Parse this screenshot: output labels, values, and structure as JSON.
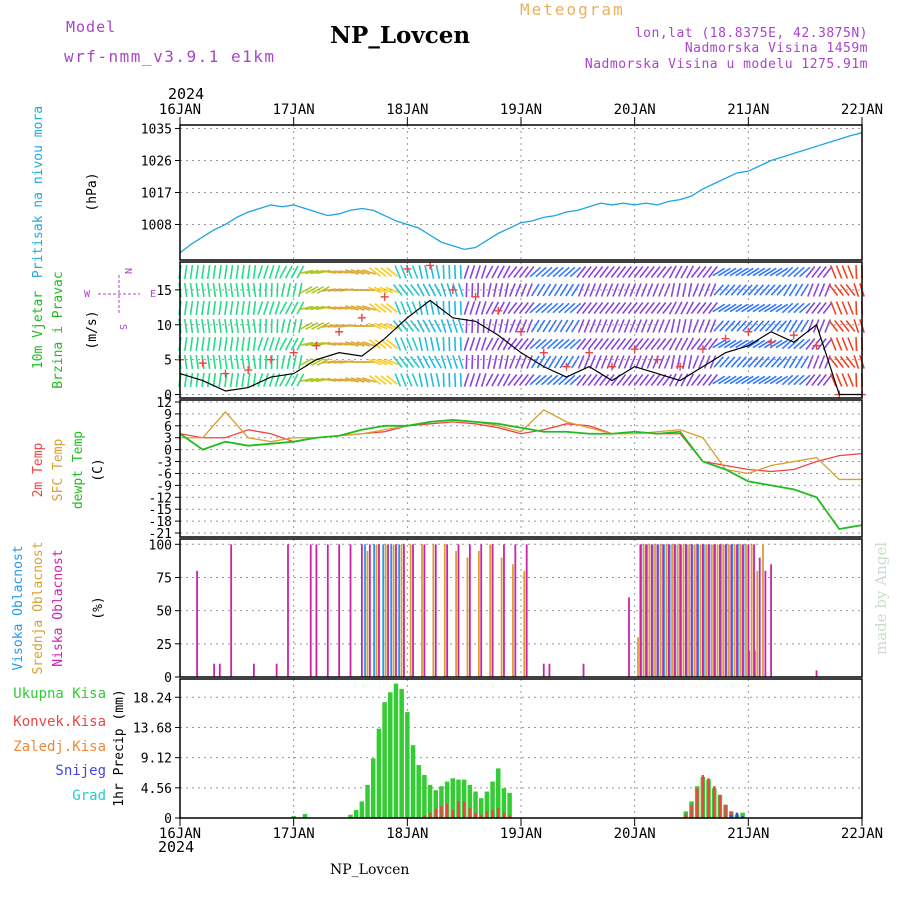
{
  "header": {
    "model_label": "Model",
    "model_name": "wrf-nmm_v3.9.1 e1km",
    "station": "NP_Lovcen",
    "meteogram_label": "Meteogram",
    "lonlat": "lon,lat (18.8375E, 42.3875N)",
    "altitude": "Nadmorska Visina 1459m",
    "model_altitude": "Nadmorska Visina u modelu 1275.91m",
    "year_top": "2024",
    "year_bottom": "2024",
    "footer_station": "NP_Lovcen",
    "watermark": "made by Angel"
  },
  "colors": {
    "pressure": "#1fa2e6",
    "temp2m": "#ee4444",
    "sfc": "#d9a030",
    "dew": "#22bb22",
    "cloud_high": "#2299ee",
    "cloud_mid": "#d9a030",
    "cloud_low": "#cc22aa",
    "rain_total": "#33cc33",
    "rain_conv": "#ee4444",
    "rain_frozen": "#ee8833",
    "snow": "#4444ee",
    "hail": "#22cccc",
    "wind_speed": "#000000",
    "gust": "#ee4444",
    "labels_purple": "#aa44cc",
    "labels_cyan": "#22aadd"
  },
  "chart_data": [
    {
      "type": "line",
      "panel": "pressure",
      "ylabel_title": "Pritisak na nivou mora",
      "ylabel_unit": "(hPa)",
      "ylim": [
        998,
        1036
      ],
      "y_ticks": [
        "1035",
        "1026",
        "1017",
        "1008"
      ],
      "x_ticks": [
        "16JAN",
        "17JAN",
        "18JAN",
        "19JAN",
        "20JAN",
        "21JAN",
        "22JAN"
      ],
      "x_days": [
        0,
        6
      ],
      "series": [
        {
          "x": [
            0,
            0.1,
            0.2,
            0.3,
            0.4,
            0.5,
            0.6,
            0.7,
            0.8,
            0.9,
            1.0,
            1.1,
            1.2,
            1.3,
            1.4,
            1.5,
            1.6,
            1.7,
            1.8,
            1.9,
            2.0,
            2.1,
            2.2,
            2.3,
            2.4,
            2.5,
            2.6,
            2.7,
            2.8,
            2.9,
            3.0,
            3.1,
            3.2,
            3.3,
            3.4,
            3.5,
            3.6,
            3.7,
            3.8,
            3.9,
            4.0,
            4.1,
            4.2,
            4.3,
            4.4,
            4.5,
            4.6,
            4.7,
            4.8,
            4.9,
            5.0,
            5.1,
            5.2,
            5.3,
            5.4,
            5.5,
            5.6,
            5.7,
            5.8,
            5.9,
            6.0
          ],
          "values": [
            1000,
            1002.5,
            1004.5,
            1006.5,
            1008,
            1010,
            1011.5,
            1012.5,
            1013.5,
            1013,
            1013.5,
            1012.5,
            1011.5,
            1010.5,
            1011,
            1012,
            1012.5,
            1012,
            1010.5,
            1009,
            1008,
            1007,
            1005,
            1003,
            1002,
            1001,
            1001.5,
            1003.5,
            1005.5,
            1007,
            1008.5,
            1009,
            1010,
            1010.5,
            1011.5,
            1012,
            1013,
            1014,
            1013.5,
            1014,
            1013.5,
            1014,
            1013.5,
            1014.5,
            1015,
            1016,
            1018,
            1019.5,
            1021,
            1022.5,
            1023,
            1024.5,
            1026,
            1027,
            1028,
            1029,
            1030,
            1031,
            1032,
            1033,
            1033.8
          ]
        }
      ]
    },
    {
      "type": "line",
      "panel": "wind",
      "ylabel_title": "10m Vjetar",
      "ylabel_title2": "Brzina i Pravac",
      "ylabel_unit": "(m/s)",
      "compass": [
        "N",
        "W",
        "E",
        "S"
      ],
      "ylim": [
        -0.5,
        19
      ],
      "y_ticks": [
        "15",
        "10",
        "5",
        "0"
      ],
      "series": [
        {
          "name": "wind speed",
          "x": [
            0,
            0.2,
            0.4,
            0.6,
            0.8,
            1.0,
            1.2,
            1.4,
            1.6,
            1.8,
            2.0,
            2.2,
            2.4,
            2.6,
            2.8,
            3.0,
            3.2,
            3.4,
            3.6,
            3.8,
            4.0,
            4.2,
            4.4,
            4.6,
            4.8,
            5.0,
            5.2,
            5.4,
            5.6,
            5.8,
            6.0
          ],
          "values": [
            3,
            2,
            0.5,
            1,
            2.5,
            3,
            5,
            6,
            5.5,
            8,
            11,
            13.5,
            11,
            10.5,
            8.5,
            6,
            4,
            2.5,
            4,
            2,
            4,
            3,
            2,
            4,
            6,
            7,
            9,
            7.5,
            10,
            0,
            0
          ]
        },
        {
          "name": "gust",
          "x": [
            0,
            0.2,
            0.4,
            0.6,
            0.8,
            1.0,
            1.2,
            1.4,
            1.6,
            1.8,
            2.0,
            2.2,
            2.4,
            2.6,
            2.8,
            3.0,
            3.2,
            3.4,
            3.6,
            3.8,
            4.0,
            4.2,
            4.4,
            4.6,
            4.8,
            5.0,
            5.2,
            5.4,
            5.6,
            5.8,
            6.0
          ],
          "values": [
            5,
            4.5,
            3,
            3.5,
            5,
            6,
            7,
            9,
            11,
            14,
            18,
            18.5,
            15,
            14,
            12,
            9,
            6,
            4,
            6,
            4,
            6.5,
            5,
            4,
            6.5,
            8,
            9,
            7.5,
            8.5,
            7,
            0,
            0
          ]
        }
      ],
      "wind_direction_deg": [
        270,
        270,
        270,
        270,
        260,
        250,
        200,
        180,
        170,
        150,
        120,
        110,
        100,
        80,
        70,
        60,
        50,
        50,
        60,
        60,
        60,
        60,
        70,
        60,
        40,
        40,
        40,
        50,
        60,
        300,
        280
      ]
    },
    {
      "type": "line",
      "panel": "temperature",
      "ylabel_lines": [
        "2m Temp",
        "SFC Temp",
        "dewpt Temp"
      ],
      "ylabel_unit": "(C)",
      "ylim": [
        -22,
        12.5
      ],
      "y_ticks": [
        "12",
        "9",
        "6",
        "3",
        "0",
        "-3",
        "-6",
        "-9",
        "-12",
        "-15",
        "-18",
        "-21"
      ],
      "series": [
        {
          "name": "2m Temp",
          "x": [
            0,
            0.2,
            0.4,
            0.6,
            0.8,
            1.0,
            1.2,
            1.4,
            1.6,
            1.8,
            2.0,
            2.2,
            2.4,
            2.6,
            2.8,
            3.0,
            3.2,
            3.4,
            3.6,
            3.8,
            4.0,
            4.2,
            4.4,
            4.6,
            4.8,
            5.0,
            5.2,
            5.4,
            5.6,
            5.8,
            6.0
          ],
          "values": [
            4,
            3,
            3,
            5,
            4,
            2,
            3,
            3.5,
            4,
            4.5,
            6,
            6.5,
            7,
            6.5,
            5.5,
            4,
            5,
            6.5,
            6,
            4,
            4.5,
            4,
            4,
            -3,
            -4,
            -5,
            -5.5,
            -5,
            -3,
            -1.5,
            -1
          ]
        },
        {
          "name": "SFC Temp",
          "x": [
            0,
            0.2,
            0.4,
            0.6,
            0.8,
            1.0,
            1.2,
            1.4,
            1.6,
            1.8,
            2.0,
            2.2,
            2.4,
            2.6,
            2.8,
            3.0,
            3.2,
            3.4,
            3.6,
            3.8,
            4.0,
            4.2,
            4.4,
            4.6,
            4.8,
            5.0,
            5.2,
            5.4,
            5.6,
            5.8,
            6.0
          ],
          "values": [
            3,
            3,
            9.5,
            3,
            2,
            3,
            3,
            3.5,
            4,
            5,
            6,
            7,
            7.5,
            7,
            6,
            4.5,
            10,
            7,
            5.5,
            4,
            4,
            4.5,
            5,
            3,
            -5,
            -6,
            -4,
            -3,
            -2,
            -7.5,
            -7.5
          ]
        },
        {
          "name": "dewpt Temp",
          "x": [
            0,
            0.2,
            0.4,
            0.6,
            0.8,
            1.0,
            1.2,
            1.4,
            1.6,
            1.8,
            2.0,
            2.2,
            2.4,
            2.6,
            2.8,
            3.0,
            3.2,
            3.4,
            3.6,
            3.8,
            4.0,
            4.2,
            4.4,
            4.6,
            4.8,
            5.0,
            5.2,
            5.4,
            5.6,
            5.8,
            6.0
          ],
          "values": [
            4,
            0,
            2,
            1,
            1.5,
            2,
            3,
            3.5,
            5,
            6,
            6,
            7,
            7.5,
            7,
            6.5,
            5.5,
            4.5,
            4.5,
            4,
            4,
            4.5,
            4,
            4.5,
            -3,
            -5,
            -8,
            -9,
            -10,
            -12,
            -20,
            -19
          ]
        }
      ]
    },
    {
      "type": "bar",
      "panel": "clouds",
      "ylabel_lines": [
        "Visoka Oblacnost",
        "Srednja Oblacnost",
        "Niska Oblacnost"
      ],
      "ylabel_unit": "(%)",
      "ylim": [
        0,
        104
      ],
      "y_ticks": [
        "100",
        "75",
        "50",
        "25",
        "0"
      ],
      "x": [
        0.1,
        0.25,
        0.3,
        0.4,
        0.6,
        0.8,
        0.9,
        1.0,
        1.1,
        1.15,
        1.25,
        1.35,
        1.45,
        1.55,
        1.62,
        1.7,
        1.78,
        1.85,
        1.92,
        2.0,
        2.1,
        2.2,
        2.3,
        2.4,
        2.5,
        2.6,
        2.7,
        2.8,
        2.9,
        3.0,
        3.15,
        3.2,
        3.5,
        3.6,
        3.9,
        4.0,
        4.05,
        4.1,
        4.15,
        4.2,
        4.25,
        4.3,
        4.35,
        4.4,
        4.45,
        4.5,
        4.55,
        4.6,
        4.65,
        4.7,
        4.75,
        4.8,
        4.85,
        4.9,
        4.95,
        5.0,
        5.05,
        5.1,
        5.15,
        5.2,
        5.55
      ],
      "series": [
        {
          "name": "Visoka Oblacnost",
          "values": [
            0,
            0,
            0,
            0,
            0,
            0,
            0,
            0,
            0,
            0,
            0,
            0,
            0,
            0,
            100,
            100,
            100,
            100,
            100,
            0,
            0,
            0,
            0,
            0,
            0,
            0,
            0,
            0,
            0,
            0,
            0,
            0,
            0,
            0,
            0,
            0,
            100,
            100,
            100,
            100,
            100,
            100,
            100,
            100,
            100,
            100,
            100,
            100,
            100,
            100,
            100,
            100,
            100,
            100,
            100,
            20,
            20,
            0,
            0,
            0,
            0
          ]
        },
        {
          "name": "Srednja Oblacnost",
          "values": [
            0,
            0,
            0,
            0,
            0,
            0,
            0,
            0,
            0,
            0,
            0,
            0,
            0,
            0,
            95,
            100,
            100,
            100,
            100,
            100,
            100,
            100,
            100,
            95,
            90,
            95,
            100,
            90,
            85,
            80,
            0,
            0,
            0,
            0,
            0,
            30,
            100,
            100,
            100,
            100,
            100,
            100,
            100,
            100,
            100,
            100,
            100,
            100,
            100,
            100,
            100,
            100,
            100,
            100,
            100,
            100,
            80,
            100,
            0,
            0,
            0
          ]
        },
        {
          "name": "Niska Oblacnost",
          "values": [
            80,
            10,
            10,
            100,
            10,
            10,
            100,
            0,
            100,
            100,
            100,
            100,
            100,
            100,
            100,
            100,
            100,
            100,
            100,
            100,
            100,
            100,
            100,
            100,
            100,
            100,
            100,
            100,
            100,
            100,
            10,
            10,
            10,
            0,
            60,
            100,
            100,
            100,
            100,
            100,
            100,
            100,
            100,
            100,
            100,
            100,
            100,
            100,
            100,
            100,
            100,
            100,
            100,
            100,
            100,
            100,
            90,
            80,
            85,
            0,
            5
          ]
        }
      ]
    },
    {
      "type": "bar",
      "panel": "precipitation",
      "legend": [
        "Ukupna Kisa",
        "Konvek.Kisa",
        "Zaledj.Kisa",
        "Snijeg",
        "Grad"
      ],
      "ylabel": "1hr Precip (mm)",
      "ylim": [
        0,
        21
      ],
      "y_ticks": [
        "18.24",
        "13.68",
        "9.12",
        "4.56",
        "0"
      ],
      "x_ticks": [
        "16JAN",
        "17JAN",
        "18JAN",
        "19JAN",
        "20JAN",
        "21JAN",
        "22JAN"
      ],
      "x": [
        1.0,
        1.1,
        1.5,
        1.55,
        1.6,
        1.65,
        1.7,
        1.75,
        1.8,
        1.85,
        1.9,
        1.95,
        2.0,
        2.05,
        2.1,
        2.15,
        2.2,
        2.25,
        2.3,
        2.35,
        2.4,
        2.45,
        2.5,
        2.55,
        2.6,
        2.65,
        2.7,
        2.75,
        2.8,
        2.85,
        2.9,
        4.45,
        4.5,
        4.55,
        4.6,
        4.65,
        4.7,
        4.75,
        4.8,
        4.85,
        4.9,
        4.95
      ],
      "series": [
        {
          "name": "Ukupna Kisa",
          "values": [
            0.3,
            0.6,
            0.5,
            1.2,
            2.5,
            5,
            9,
            13.5,
            17.5,
            19,
            20.3,
            19.5,
            16,
            11,
            8,
            6.5,
            5,
            4.2,
            4.8,
            5.5,
            6,
            5.8,
            5.8,
            5,
            4,
            3,
            4,
            5.5,
            7.5,
            4.5,
            3.8,
            1,
            2.5,
            4.8,
            6.2,
            5.8,
            4.5,
            3.5,
            2,
            1,
            0.5,
            0.8
          ]
        },
        {
          "name": "Konvek.Kisa",
          "values": [
            0,
            0,
            0,
            0,
            0,
            0,
            0,
            0,
            0,
            0,
            0,
            0,
            0,
            0,
            0,
            0.4,
            0.8,
            1.4,
            1.8,
            2.2,
            1.2,
            2.6,
            2.5,
            1.5,
            0.8,
            0.5,
            1,
            1.2,
            1.5,
            0.8,
            0.4,
            0.5,
            2,
            4.5,
            6.5,
            6,
            4.8,
            3.5,
            2,
            1,
            0,
            0
          ]
        },
        {
          "name": "Snijeg",
          "values": [
            0,
            0,
            0,
            0,
            0,
            0,
            0,
            0,
            0,
            0,
            0,
            0,
            0,
            0,
            0,
            0,
            0,
            0,
            0,
            0,
            0,
            0,
            0,
            0,
            0,
            0,
            0,
            0,
            0,
            0,
            0,
            0,
            0,
            0,
            0,
            0,
            0,
            0,
            0,
            0.5,
            0.8,
            0.3
          ]
        }
      ]
    }
  ]
}
